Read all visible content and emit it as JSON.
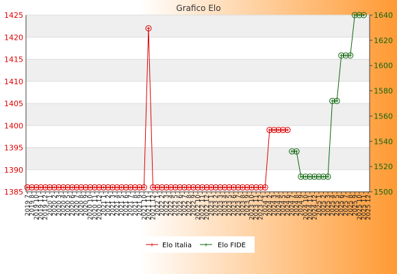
{
  "colors": {
    "italia": "#dd0000",
    "fide": "#116611",
    "bg_left": "#ffffff",
    "bg_right": "#ff9a33",
    "band": "#efefef",
    "plot": "#ffffff"
  },
  "chart_data": {
    "type": "line",
    "title": "Grafico Elo",
    "categories": [
      "2019 7",
      "2019 8",
      "2019 10",
      "2019 11",
      "2019 12",
      "2020 1",
      "2020 2",
      "2020 3",
      "2020 4",
      "2020 5",
      "2020 6",
      "2020 7",
      "2020 8",
      "2020 9",
      "2020 10",
      "2020 11",
      "2020 12",
      "2021 1",
      "2021 2",
      "2021 3",
      "2021 4",
      "2021 5",
      "2021 6",
      "2021 7",
      "2021 8",
      "2021 9",
      "2021 10",
      "2021 11",
      "2021 12",
      "2022 1",
      "2022 2",
      "2022 3",
      "2022 4",
      "2022 5",
      "2022 6",
      "2022 7",
      "2022 8",
      "2022 9",
      "2022 10",
      "2022 11",
      "2022 12",
      "2023 1",
      "2023 2",
      "2023 3",
      "2023 4",
      "2023 5",
      "2023 6",
      "2023 7",
      "2023 8",
      "2023 9",
      "2023 10",
      "2023 11",
      "2023 12",
      "2024 1",
      "2024 2",
      "2024 3",
      "2024 4",
      "2024 5",
      "2024 6",
      "2024 7",
      "2024 8",
      "2024 9",
      "2024 10",
      "2024 11",
      "2024 12",
      "2025 1",
      "2025 2",
      "2025 3",
      "2025 4",
      "2025 5",
      "2025 6",
      "2025 7",
      "2025 8",
      "2025 9",
      "2025 10",
      "2025 11",
      "2025 12"
    ],
    "series": [
      {
        "name": "Elo Italia",
        "axis": "left",
        "values": [
          1386,
          1386,
          1386,
          1386,
          1386,
          1386,
          1386,
          1386,
          1386,
          1386,
          1386,
          1386,
          1386,
          1386,
          1386,
          1386,
          1386,
          1386,
          1386,
          1386,
          1386,
          1386,
          1386,
          1386,
          1386,
          1386,
          1386,
          1422,
          1386,
          1386,
          1386,
          1386,
          1386,
          1386,
          1386,
          1386,
          1386,
          1386,
          1386,
          1386,
          1386,
          1386,
          1386,
          1386,
          1386,
          1386,
          1386,
          1386,
          1386,
          1386,
          1386,
          1386,
          1386,
          1386,
          1399,
          1399,
          1399,
          1399,
          1399,
          null,
          null,
          null,
          null,
          null,
          null,
          null,
          null,
          null,
          null,
          null,
          null,
          null,
          null,
          null,
          null,
          null,
          null
        ]
      },
      {
        "name": "Elo FIDE",
        "axis": "right",
        "values": [
          null,
          null,
          null,
          null,
          null,
          null,
          null,
          null,
          null,
          null,
          null,
          null,
          null,
          null,
          null,
          null,
          null,
          null,
          null,
          null,
          null,
          null,
          null,
          null,
          null,
          null,
          null,
          null,
          null,
          null,
          null,
          null,
          null,
          null,
          null,
          null,
          null,
          null,
          null,
          null,
          null,
          null,
          null,
          null,
          null,
          null,
          null,
          null,
          null,
          null,
          null,
          null,
          null,
          null,
          null,
          null,
          null,
          null,
          null,
          1532,
          1532,
          1512,
          1512,
          1512,
          1512,
          1512,
          1512,
          1512,
          1572,
          1572,
          1608,
          1608,
          1608,
          1640,
          1640,
          1640,
          null
        ]
      }
    ],
    "y_left": {
      "min": 1385,
      "max": 1425,
      "ticks": [
        1385,
        1390,
        1395,
        1400,
        1405,
        1410,
        1415,
        1420,
        1425
      ]
    },
    "y_right": {
      "min": 1500,
      "max": 1640,
      "ticks": [
        1500,
        1520,
        1540,
        1560,
        1580,
        1600,
        1620,
        1640
      ]
    },
    "grid": true,
    "legend": "bottom"
  }
}
